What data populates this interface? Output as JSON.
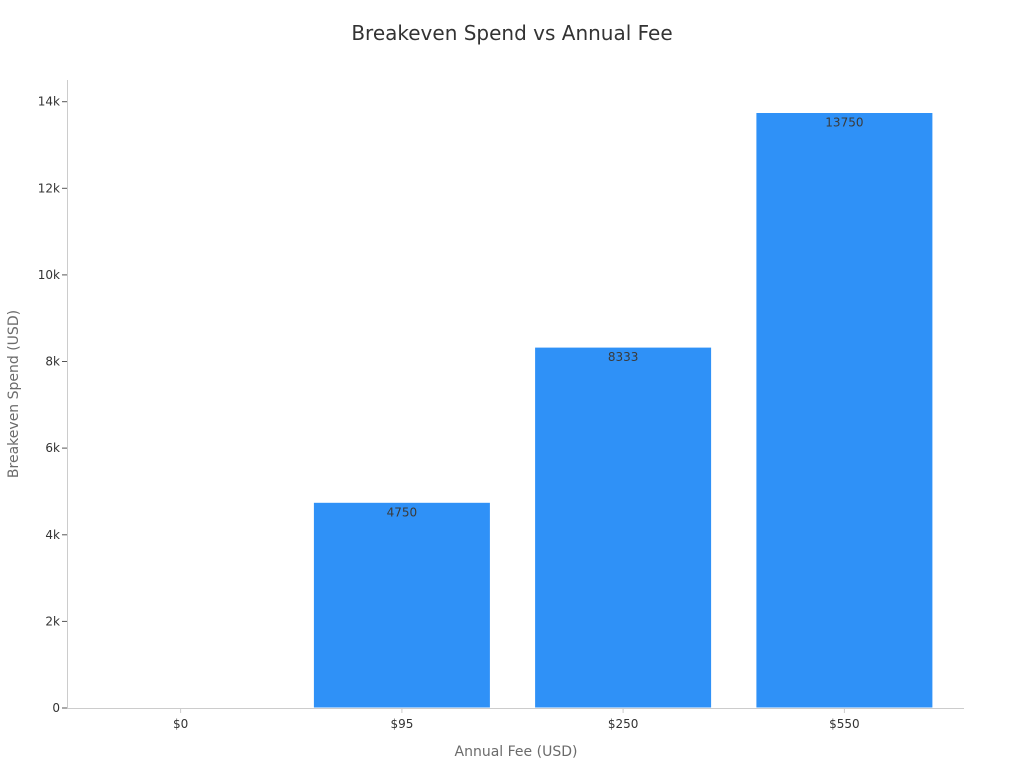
{
  "chart_data": {
    "type": "bar",
    "title": "Breakeven Spend vs Annual Fee",
    "xlabel": "Annual Fee (USD)",
    "ylabel": "Breakeven Spend (USD)",
    "categories": [
      "$0",
      "$95",
      "$250",
      "$550"
    ],
    "values": [
      0,
      4750,
      8333,
      13750
    ],
    "data_labels": [
      "",
      "4750",
      "8333",
      "13750"
    ],
    "ylim": [
      0,
      14500
    ],
    "y_ticks": [
      0,
      2000,
      4000,
      6000,
      8000,
      10000,
      12000,
      14000
    ],
    "y_tick_labels": [
      "0",
      "2k",
      "4k",
      "6k",
      "8k",
      "10k",
      "12k",
      "14k"
    ],
    "grid": false,
    "legend": "none",
    "bar_color": "#2f91f7",
    "axis_color": "#cccccc"
  }
}
